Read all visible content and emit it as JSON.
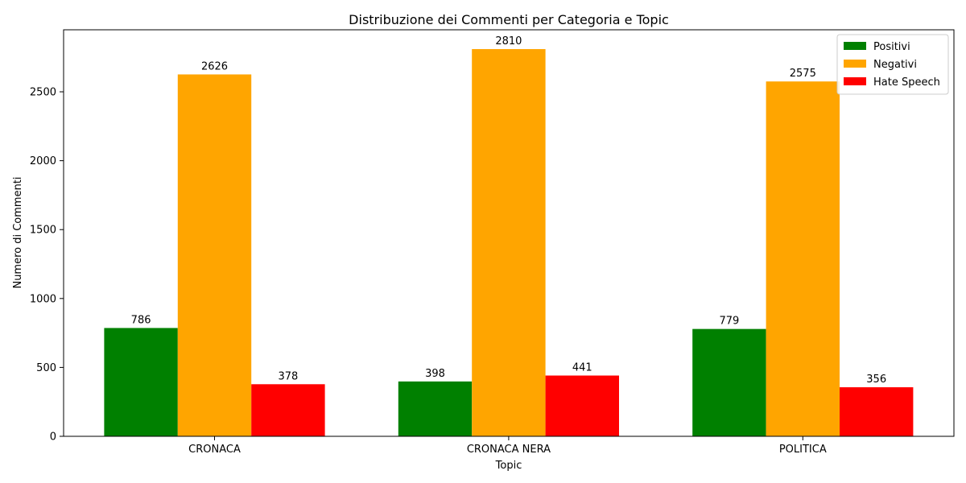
{
  "chart_data": {
    "type": "bar",
    "title": "Distribuzione dei Commenti per Categoria e Topic",
    "xlabel": "Topic",
    "ylabel": "Numero di Commenti",
    "categories": [
      "CRONACA",
      "CRONACA NERA",
      "POLITICA"
    ],
    "series": [
      {
        "name": "Positivi",
        "color": "#008000",
        "values": [
          786,
          398,
          779
        ]
      },
      {
        "name": "Negativi",
        "color": "#FFA500",
        "values": [
          2626,
          2810,
          2575
        ]
      },
      {
        "name": "Hate Speech",
        "color": "#FF0000",
        "values": [
          378,
          441,
          356
        ]
      }
    ],
    "ylim": [
      0,
      2950
    ],
    "yticks": [
      0,
      500,
      1000,
      1500,
      2000,
      2500
    ],
    "legend_position": "top-right",
    "grid": false
  }
}
